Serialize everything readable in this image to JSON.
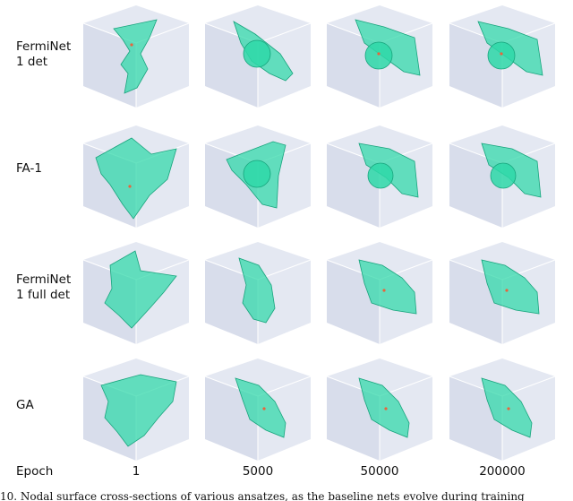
{
  "row_labels": [
    "FermiNet\n1 det",
    "FA-1",
    "FermiNet\n1 full det",
    "GA"
  ],
  "column_header": "Epoch",
  "epochs": [
    "1",
    "5000",
    "50000",
    "200000"
  ],
  "caption": "10. Nodal surface cross-sections of various ansatzes, as the baseline nets evolve during training",
  "colors": {
    "cube_face": "#e4e8f2",
    "cube_face_dark": "#d8ddeb",
    "cube_edge": "#ffffff",
    "surface": "#2ed8a8",
    "surface_edge": "#17a47c",
    "nucleus": "#e8643c"
  }
}
